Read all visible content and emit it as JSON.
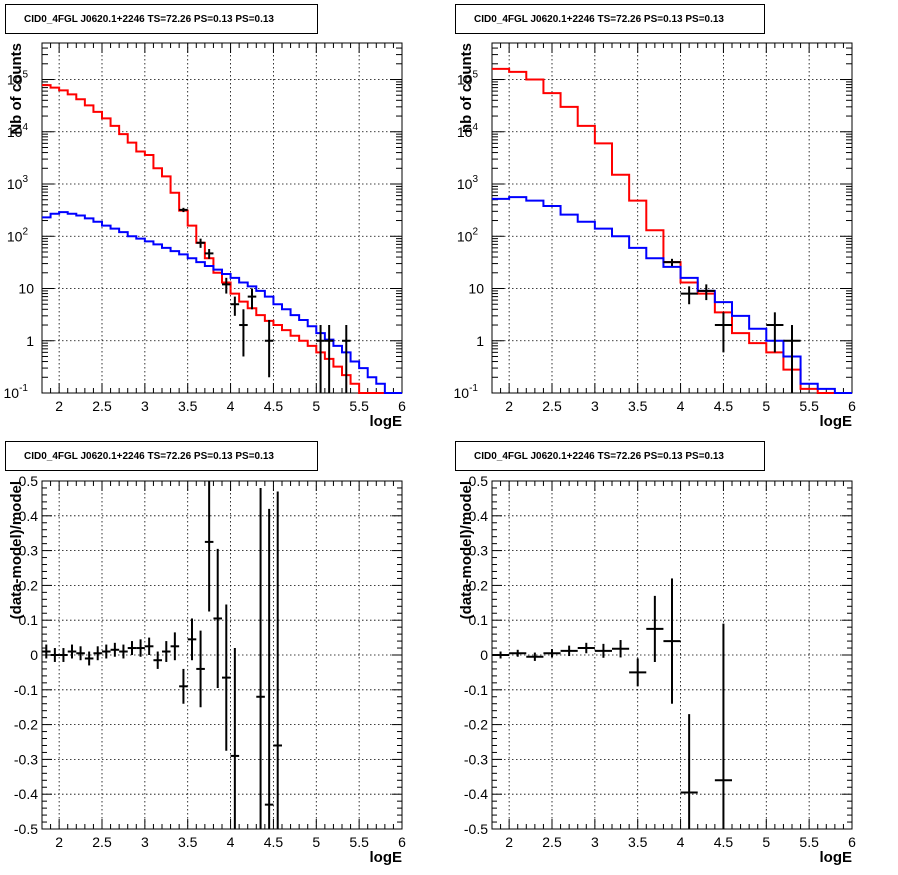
{
  "chart_data": [
    {
      "type": "line",
      "title": "CID0_4FGL J0620.1+2246 TS=72.26 PS=0.13 PS=0.13",
      "xlabel": "logE",
      "ylabel": "Nb of counts",
      "log_y": true,
      "xlim": [
        1.8,
        6.0
      ],
      "ylim": [
        0.1,
        500000
      ],
      "grid": true,
      "x_ticks": [
        "2",
        "2.5",
        "3",
        "3.5",
        "4",
        "4.5",
        "5",
        "5.5",
        "6"
      ],
      "y_tick_labels": [
        "10^-1",
        "1",
        "10",
        "10^2",
        "10^3",
        "10^4",
        "10^5"
      ],
      "bin_edges": [
        1.8,
        1.9,
        2.0,
        2.1,
        2.2,
        2.3,
        2.4,
        2.5,
        2.6,
        2.7,
        2.8,
        2.9,
        3.0,
        3.1,
        3.2,
        3.3,
        3.4,
        3.5,
        3.6,
        3.7,
        3.8,
        3.9,
        4.0,
        4.1,
        4.2,
        4.3,
        4.4,
        4.5,
        4.6,
        4.7,
        4.8,
        4.9,
        5.0,
        5.1,
        5.2,
        5.3,
        5.4,
        5.5,
        5.6,
        5.7,
        5.8,
        5.9,
        6.0
      ],
      "series": [
        {
          "color": "#ff0000",
          "values": [
            78000,
            70000,
            62000,
            52000,
            42000,
            32000,
            24000,
            18000,
            13000,
            9000,
            6200,
            4200,
            3600,
            2000,
            1400,
            680,
            310,
            160,
            75,
            38,
            20,
            13,
            8,
            5.6,
            4.2,
            3.1,
            2.4,
            2.0,
            1.6,
            1.25,
            1.0,
            0.8,
            0.6,
            0.45,
            0.32,
            0.22,
            0.15,
            0.1,
            0.1,
            0.1,
            0.1,
            0.1
          ]
        },
        {
          "color": "#0000ff",
          "values": [
            230,
            270,
            290,
            270,
            250,
            220,
            190,
            160,
            140,
            120,
            100,
            90,
            80,
            70,
            60,
            52,
            45,
            38,
            32,
            27,
            23,
            19,
            16,
            13,
            11,
            9,
            7,
            5,
            4,
            3.1,
            2.5,
            1.9,
            1.4,
            1.05,
            0.8,
            0.6,
            0.4,
            0.3,
            0.2,
            0.15,
            0.1,
            0.1
          ]
        }
      ],
      "points": [
        {
          "x": 3.45,
          "y": 320,
          "ylo": 290,
          "yhi": 350
        },
        {
          "x": 3.65,
          "y": 75,
          "ylo": 60,
          "yhi": 90
        },
        {
          "x": 3.75,
          "y": 47,
          "ylo": 37,
          "yhi": 57
        },
        {
          "x": 3.95,
          "y": 12,
          "ylo": 8,
          "yhi": 16
        },
        {
          "x": 4.05,
          "y": 5,
          "ylo": 3,
          "yhi": 7
        },
        {
          "x": 4.15,
          "y": 2,
          "ylo": 0.5,
          "yhi": 4
        },
        {
          "x": 4.25,
          "y": 7,
          "ylo": 4,
          "yhi": 10
        },
        {
          "x": 4.45,
          "y": 1,
          "ylo": 0.2,
          "yhi": 2.5
        },
        {
          "x": 5.05,
          "y": 1,
          "ylo": 0.1,
          "yhi": 2
        },
        {
          "x": 5.15,
          "y": 1,
          "ylo": 0.1,
          "yhi": 2
        },
        {
          "x": 5.35,
          "y": 1,
          "ylo": 0.1,
          "yhi": 2
        }
      ]
    },
    {
      "type": "line",
      "title": "CID0_4FGL J0620.1+2246 TS=72.26 PS=0.13 PS=0.13",
      "xlabel": "logE",
      "ylabel": "nb of counts",
      "log_y": true,
      "xlim": [
        1.8,
        6.0
      ],
      "ylim": [
        0.1,
        500000
      ],
      "grid": true,
      "x_ticks": [
        "2",
        "2.5",
        "3",
        "3.5",
        "4",
        "4.5",
        "5",
        "5.5",
        "6"
      ],
      "y_tick_labels": [
        "10^-1",
        "1",
        "10",
        "10^2",
        "10^3",
        "10^4",
        "10^5"
      ],
      "bin_edges": [
        1.8,
        2.0,
        2.2,
        2.4,
        2.6,
        2.8,
        3.0,
        3.2,
        3.4,
        3.6,
        3.8,
        4.0,
        4.2,
        4.4,
        4.6,
        4.8,
        5.0,
        5.2,
        5.4,
        5.6,
        5.8,
        6.0
      ],
      "series": [
        {
          "color": "#ff0000",
          "values": [
            160000,
            140000,
            100000,
            55000,
            30000,
            13000,
            6000,
            1500,
            480,
            130,
            32,
            13,
            8,
            3.5,
            1.4,
            0.9,
            0.6,
            0.28,
            0.12,
            0.1,
            0.1
          ]
        },
        {
          "color": "#0000ff",
          "values": [
            520,
            560,
            480,
            380,
            260,
            190,
            140,
            100,
            60,
            38,
            26,
            16,
            9,
            5.5,
            3,
            1.7,
            1.0,
            0.5,
            0.15,
            0.12,
            0.1
          ]
        }
      ],
      "points": [
        {
          "x": 3.9,
          "y": 32,
          "ylo": 27,
          "yhi": 37
        },
        {
          "x": 4.1,
          "y": 8,
          "ylo": 5,
          "yhi": 11
        },
        {
          "x": 4.3,
          "y": 9,
          "ylo": 6,
          "yhi": 12
        },
        {
          "x": 4.5,
          "y": 2,
          "ylo": 0.6,
          "yhi": 3.5
        },
        {
          "x": 5.1,
          "y": 2,
          "ylo": 0.6,
          "yhi": 3.5
        },
        {
          "x": 5.3,
          "y": 1,
          "ylo": 0.1,
          "yhi": 2
        }
      ]
    },
    {
      "type": "scatter",
      "title": "CID0_4FGL J0620.1+2246 TS=72.26 PS=0.13 PS=0.13",
      "xlabel": "logE",
      "ylabel": "(data-model)/model",
      "xlim": [
        1.8,
        6.0
      ],
      "ylim": [
        -0.5,
        0.5
      ],
      "grid": true,
      "x_ticks": [
        "2",
        "2.5",
        "3",
        "3.5",
        "4",
        "4.5",
        "5",
        "5.5",
        "6"
      ],
      "y_ticks": [
        "-0.5",
        "-0.4",
        "-0.3",
        "-0.2",
        "-0.1",
        "0",
        "0.1",
        "0.2",
        "0.3",
        "0.4",
        "0.5"
      ],
      "bin_width": 0.1,
      "points": [
        {
          "x": 1.85,
          "y": 0.01,
          "err": 0.02
        },
        {
          "x": 1.95,
          "y": 0.0,
          "err": 0.02
        },
        {
          "x": 2.05,
          "y": 0.0,
          "err": 0.02
        },
        {
          "x": 2.15,
          "y": 0.01,
          "err": 0.02
        },
        {
          "x": 2.25,
          "y": 0.005,
          "err": 0.02
        },
        {
          "x": 2.35,
          "y": -0.01,
          "err": 0.02
        },
        {
          "x": 2.45,
          "y": 0.005,
          "err": 0.02
        },
        {
          "x": 2.55,
          "y": 0.01,
          "err": 0.02
        },
        {
          "x": 2.65,
          "y": 0.015,
          "err": 0.02
        },
        {
          "x": 2.75,
          "y": 0.01,
          "err": 0.02
        },
        {
          "x": 2.85,
          "y": 0.02,
          "err": 0.02
        },
        {
          "x": 2.95,
          "y": 0.02,
          "err": 0.025
        },
        {
          "x": 3.05,
          "y": 0.025,
          "err": 0.025
        },
        {
          "x": 3.15,
          "y": -0.015,
          "err": 0.025
        },
        {
          "x": 3.25,
          "y": 0.01,
          "err": 0.03
        },
        {
          "x": 3.35,
          "y": 0.025,
          "err": 0.04
        },
        {
          "x": 3.45,
          "y": -0.09,
          "err": 0.05
        },
        {
          "x": 3.55,
          "y": 0.045,
          "err": 0.06
        },
        {
          "x": 3.65,
          "y": -0.04,
          "err": 0.11
        },
        {
          "x": 3.75,
          "y": 0.325,
          "err": 0.2
        },
        {
          "x": 3.85,
          "y": 0.105,
          "err": 0.2
        },
        {
          "x": 3.95,
          "y": -0.065,
          "err": 0.21
        },
        {
          "x": 4.05,
          "y": -0.29,
          "err": 0.31
        },
        {
          "x": 4.35,
          "y": -0.12,
          "err": 0.6
        },
        {
          "x": 4.45,
          "y": -0.43,
          "err": 0.85
        },
        {
          "x": 4.55,
          "y": -0.26,
          "err": 0.73
        }
      ]
    },
    {
      "type": "scatter",
      "title": "CID0_4FGL J0620.1+2246 TS=72.26 PS=0.13 PS=0.13",
      "xlabel": "logE",
      "ylabel": "(data-model)/model",
      "xlim": [
        1.8,
        6.0
      ],
      "ylim": [
        -0.5,
        0.5
      ],
      "grid": true,
      "x_ticks": [
        "2",
        "2.5",
        "3",
        "3.5",
        "4",
        "4.5",
        "5",
        "5.5",
        "6"
      ],
      "y_ticks": [
        "-0.5",
        "-0.4",
        "-0.3",
        "-0.2",
        "-0.1",
        "0",
        "0.1",
        "0.2",
        "0.3",
        "0.4",
        "0.5"
      ],
      "bin_width": 0.2,
      "points": [
        {
          "x": 1.9,
          "y": 0.0,
          "err": 0.01
        },
        {
          "x": 2.1,
          "y": 0.005,
          "err": 0.01
        },
        {
          "x": 2.3,
          "y": -0.005,
          "err": 0.012
        },
        {
          "x": 2.5,
          "y": 0.005,
          "err": 0.012
        },
        {
          "x": 2.7,
          "y": 0.012,
          "err": 0.015
        },
        {
          "x": 2.9,
          "y": 0.02,
          "err": 0.015
        },
        {
          "x": 3.1,
          "y": 0.012,
          "err": 0.02
        },
        {
          "x": 3.3,
          "y": 0.018,
          "err": 0.025
        },
        {
          "x": 3.5,
          "y": -0.05,
          "err": 0.04
        },
        {
          "x": 3.7,
          "y": 0.075,
          "err": 0.095
        },
        {
          "x": 3.9,
          "y": 0.04,
          "err": 0.18
        },
        {
          "x": 4.1,
          "y": -0.395,
          "err": 0.225
        },
        {
          "x": 4.5,
          "y": -0.36,
          "err": 0.45
        }
      ]
    }
  ]
}
